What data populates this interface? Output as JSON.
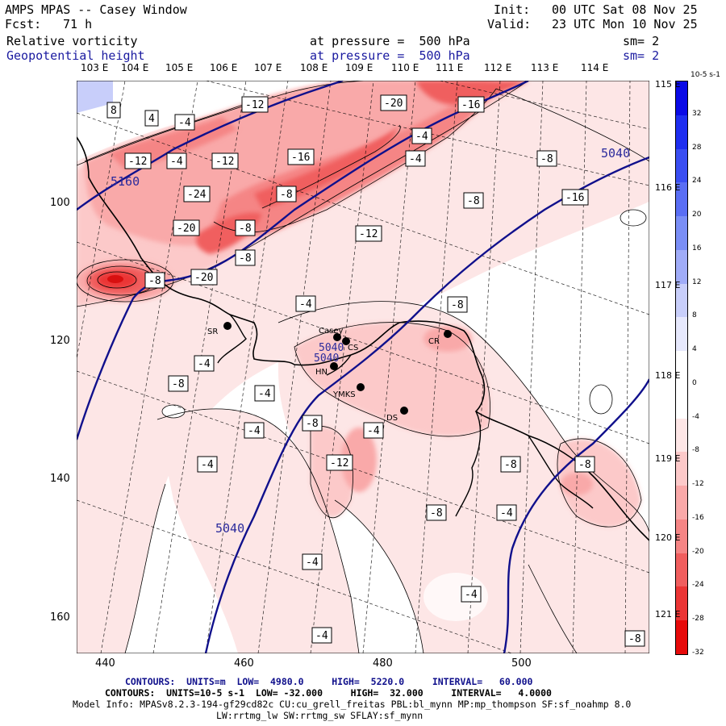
{
  "header": {
    "title": "AMPS MPAS -- Casey Window",
    "fcst_label": "Fcst:",
    "fcst_value": "71 h",
    "init_label": "Init:",
    "init_value": "00 UTC Sat 08 Nov 25",
    "valid_label": "Valid:",
    "valid_value": "23 UTC Mon 10 Nov 25",
    "field1": "Relative vorticity",
    "field2": "Geopotential height",
    "pressure1": "at pressure =  500 hPa",
    "pressure2": "at pressure =  500 hPa",
    "sm1": "sm= 2",
    "sm2": "sm= 2"
  },
  "lon_labels": [
    "103 E",
    "104 E",
    "105 E",
    "106 E",
    "107 E",
    "108 E",
    "109 E",
    "110 E",
    "111 E",
    "112 E",
    "113 E",
    "114 E"
  ],
  "lat_labels": [
    "115 E",
    "116 E",
    "117 E",
    "118 E",
    "119 E",
    "120 E",
    "121 E"
  ],
  "x_axis": {
    "ticks": [
      "440",
      "460",
      "480",
      "500"
    ]
  },
  "y_axis": {
    "ticks": [
      "100",
      "120",
      "140",
      "160"
    ]
  },
  "colorbar": {
    "unit": "10-5 s-1",
    "labels": [
      "32",
      "28",
      "24",
      "20",
      "16",
      "12",
      "8",
      "4",
      "0",
      "-4",
      "-8",
      "-12",
      "-16",
      "-20",
      "-24",
      "-28",
      "-32"
    ],
    "colors": [
      "#0a0ae6",
      "#1e2ef0",
      "#3a4ef2",
      "#5a6ef4",
      "#7a8ef6",
      "#a0acf8",
      "#c8cefa",
      "#e6e8fc",
      "#ffffff",
      "#ffffff",
      "#fde6e6",
      "#fcc9c9",
      "#f9a9a9",
      "#f58585",
      "#f05e5e",
      "#eb3535",
      "#e60a0a"
    ]
  },
  "stations": [
    {
      "name": "Casey"
    },
    {
      "name": "SR"
    },
    {
      "name": "CR"
    },
    {
      "name": "HN"
    },
    {
      "name": "YMKS"
    },
    {
      "name": "DS"
    },
    {
      "name": "CS"
    }
  ],
  "height_labels": [
    "5160",
    "5040",
    "5040",
    "5040",
    "5040"
  ],
  "vort_labels": [
    "8",
    "4",
    "-4",
    "-12",
    "-20",
    "-16",
    "-12",
    "-4",
    "-12",
    "-16",
    "-4",
    "-4",
    "-8",
    "-24",
    "-8",
    "-8",
    "-16",
    "-20",
    "-8",
    "-8",
    "-12",
    "-20",
    "-8",
    "-4",
    "-8",
    "-4",
    "-8",
    "-4",
    "-8",
    "-4",
    "-12",
    "-4",
    "-8",
    "-4",
    "-4",
    "-8",
    "-8",
    "-4",
    "-4",
    "-8",
    "-4"
  ],
  "footer": {
    "line1_a": "CONTOURS:  UNITS=m  LOW=  4980.0",
    "line1_b": "HIGH=  5220.0",
    "line1_c": "INTERVAL=   60.000",
    "line2_a": "CONTOURS:  UNITS=10-5 s-1  LOW= -32.000",
    "line2_b": "HIGH=  32.000",
    "line2_c": "INTERVAL=   4.0000",
    "model1": "Model Info: MPASv8.2.3-194-gf29cd82c CU:cu_grell_freitas PBL:bl_mynn MP:mp_thompson SF:sf_noahmp 8.0",
    "model2": "LW:rrtmg_lw SW:rrtmg_sw SFLAY:sf_mynn"
  }
}
